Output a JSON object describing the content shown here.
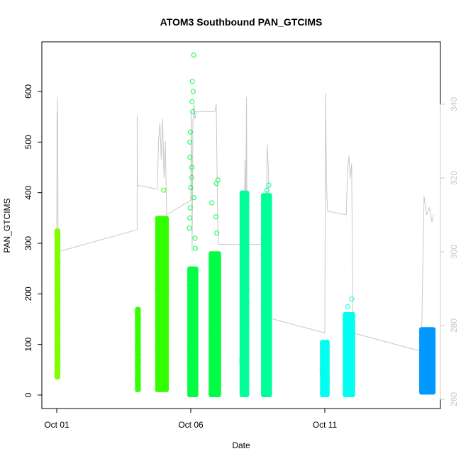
{
  "chart_data": {
    "type": "scatter",
    "title": "ATOM3 Southbound PAN_GTCIMS",
    "xlabel": "Date",
    "ylabel": "PAN_GTCIMS",
    "x_ticks": [
      "Oct 01",
      "Oct 06",
      "Oct 11"
    ],
    "x_tick_days": [
      1,
      6,
      11
    ],
    "xlim": [
      0.5,
      15.2
    ],
    "ylim": [
      0,
      670
    ],
    "y_ticks": [
      0,
      100,
      200,
      300,
      400,
      500,
      600
    ],
    "y2lim": [
      260,
      344
    ],
    "y2_ticks": [
      260,
      280,
      300,
      320,
      340
    ],
    "secondary_axis_color": "#c8c8c8",
    "series": [
      {
        "color": "#7fff00",
        "clusters": [
          {
            "day_start": 1.0,
            "day_end": 1.05,
            "y_min": 35,
            "y_max": 325,
            "outliers": [
              300,
              310,
              320
            ]
          }
        ]
      },
      {
        "color": "#33ff00",
        "clusters": [
          {
            "day_start": 4.0,
            "day_end": 4.05,
            "y_min": 10,
            "y_max": 170,
            "outliers": []
          },
          {
            "day_start": 4.75,
            "day_end": 5.1,
            "y_min": 10,
            "y_max": 350,
            "outliers": [
              405,
              320,
              340
            ]
          }
        ]
      },
      {
        "color": "#00ff44",
        "clusters": [
          {
            "day_start": 5.95,
            "day_end": 6.2,
            "y_min": 0,
            "y_max": 250,
            "outliers": [
              672,
              620,
              600,
              580,
              560,
              520,
              500,
              470,
              450,
              430,
              410,
              390,
              370,
              350,
              330,
              310,
              290
            ]
          },
          {
            "day_start": 6.75,
            "day_end": 7.05,
            "y_min": 0,
            "y_max": 280,
            "outliers": [
              425,
              418,
              380,
              352,
              320
            ]
          }
        ]
      },
      {
        "color": "#00ff99",
        "clusters": [
          {
            "day_start": 7.9,
            "day_end": 8.1,
            "y_min": 0,
            "y_max": 400,
            "outliers": []
          },
          {
            "day_start": 8.7,
            "day_end": 8.95,
            "y_min": 0,
            "y_max": 395,
            "outliers": [
              415,
              405
            ]
          }
        ]
      },
      {
        "color": "#00ffee",
        "clusters": [
          {
            "day_start": 10.9,
            "day_end": 11.1,
            "y_min": 0,
            "y_max": 105,
            "outliers": []
          },
          {
            "day_start": 11.75,
            "day_end": 12.05,
            "y_min": 0,
            "y_max": 160,
            "outliers": [
              190,
              175
            ]
          }
        ]
      },
      {
        "color": "#0099ff",
        "clusters": [
          {
            "day_start": 14.6,
            "day_end": 15.05,
            "y_min": 5,
            "y_max": 130,
            "outliers": []
          }
        ]
      }
    ],
    "secondary_line": {
      "color": "#c8c8c8",
      "segments": [
        {
          "x": [
            1.0,
            1.01,
            1.02,
            1.03,
            1.04,
            1.05
          ],
          "y": [
            300,
            338,
            330,
            342,
            325,
            300
          ]
        },
        {
          "x": [
            1.05,
            4.0
          ],
          "y": [
            300,
            306
          ]
        },
        {
          "x": [
            4.0,
            4.0,
            4.01,
            4.02
          ],
          "y": [
            306,
            337,
            318,
            318
          ]
        },
        {
          "x": [
            4.02,
            4.75
          ],
          "y": [
            318,
            317
          ]
        },
        {
          "x": [
            4.75,
            4.8,
            4.85,
            4.9,
            4.95,
            5.0,
            5.05,
            5.1
          ],
          "y": [
            317,
            330,
            335,
            325,
            336,
            320,
            330,
            310
          ]
        },
        {
          "x": [
            5.1,
            6.0
          ],
          "y": [
            310,
            314
          ]
        },
        {
          "x": [
            6.0,
            6.02,
            6.05,
            6.08,
            6.12,
            6.16,
            6.2
          ],
          "y": [
            314,
            338,
            300,
            335,
            340,
            336,
            338
          ]
        },
        {
          "x": [
            6.2,
            6.9
          ],
          "y": [
            338,
            338
          ]
        },
        {
          "x": [
            6.9,
            6.95,
            7.0,
            7.02
          ],
          "y": [
            338,
            340,
            310,
            302
          ]
        },
        {
          "x": [
            7.02,
            8.0
          ],
          "y": [
            302,
            302
          ]
        },
        {
          "x": [
            8.0,
            8.02,
            8.05,
            8.08,
            8.1
          ],
          "y": [
            302,
            325,
            310,
            342,
            302
          ]
        },
        {
          "x": [
            8.1,
            8.8
          ],
          "y": [
            302,
            302
          ]
        },
        {
          "x": [
            8.8,
            8.85,
            8.9,
            8.95
          ],
          "y": [
            302,
            329,
            322,
            282
          ]
        },
        {
          "x": [
            8.95,
            11.0
          ],
          "y": [
            282,
            278
          ]
        },
        {
          "x": [
            11.0,
            11.03,
            11.06,
            11.1
          ],
          "y": [
            278,
            343,
            319,
            311
          ]
        },
        {
          "x": [
            11.1,
            11.8
          ],
          "y": [
            311,
            310
          ]
        },
        {
          "x": [
            11.8,
            11.85,
            11.9,
            11.95,
            12.0,
            12.05
          ],
          "y": [
            310,
            322,
            326,
            320,
            324,
            278
          ]
        },
        {
          "x": [
            12.05,
            14.6
          ],
          "y": [
            278,
            273
          ]
        },
        {
          "x": [
            14.6,
            14.7,
            14.8,
            14.9,
            15.0,
            15.05
          ],
          "y": [
            273,
            315,
            310,
            312,
            308,
            310
          ]
        }
      ]
    }
  }
}
